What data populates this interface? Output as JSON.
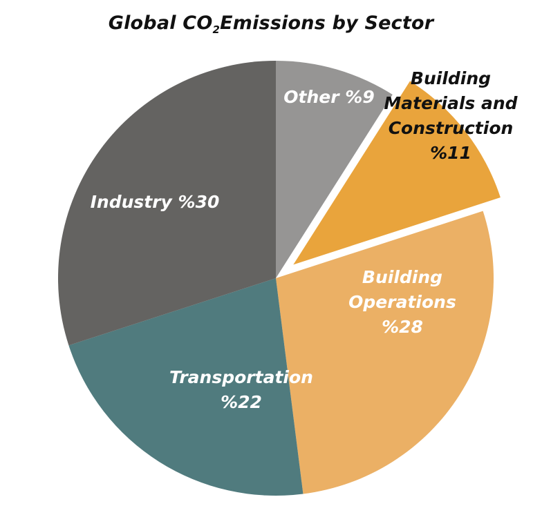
{
  "chart_data": {
    "type": "pie",
    "title_parts": {
      "before": "Global CO",
      "subscript": "2",
      "after": "Emissions by Sector"
    },
    "slices": [
      {
        "label_lines": [
          "Other %9"
        ],
        "value": 9,
        "color": "#969594",
        "label_color": "#ffffff",
        "exploded": false
      },
      {
        "label_lines": [
          "Building",
          "Materials and",
          "Construction",
          "%11"
        ],
        "value": 11,
        "color": "#e9a43c",
        "label_color": "#111111",
        "exploded": true
      },
      {
        "label_lines": [
          "Building",
          "Operations",
          "%28"
        ],
        "value": 28,
        "color": "#ebb065",
        "label_color": "#ffffff",
        "exploded": false
      },
      {
        "label_lines": [
          "Transportation",
          "%22"
        ],
        "value": 22,
        "color": "#507b7e",
        "label_color": "#ffffff",
        "exploded": false
      },
      {
        "label_lines": [
          "Industry %30"
        ],
        "value": 30,
        "color": "#646361",
        "label_color": "#ffffff",
        "exploded": false
      }
    ]
  }
}
